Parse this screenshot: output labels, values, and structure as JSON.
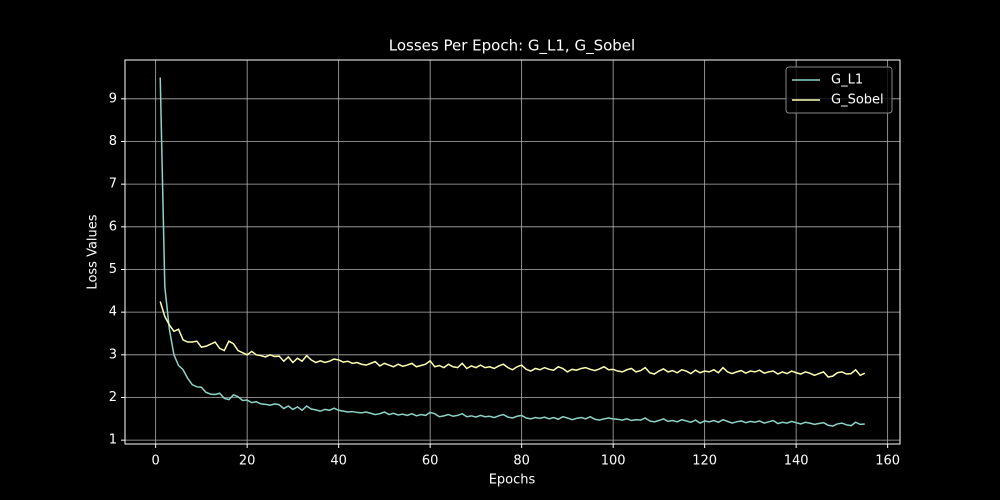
{
  "chart_data": {
    "type": "line",
    "title": "Losses Per Epoch: G_L1, G_Sobel",
    "x_label": "Epochs",
    "y_label": "Loss Values",
    "x": [
      1,
      2,
      3,
      4,
      5,
      6,
      7,
      8,
      9,
      10,
      11,
      12,
      13,
      14,
      15,
      16,
      17,
      18,
      19,
      20,
      21,
      22,
      23,
      24,
      25,
      26,
      27,
      28,
      29,
      30,
      31,
      32,
      33,
      34,
      35,
      36,
      37,
      38,
      39,
      40,
      41,
      42,
      43,
      44,
      45,
      46,
      47,
      48,
      49,
      50,
      51,
      52,
      53,
      54,
      55,
      56,
      57,
      58,
      59,
      60,
      61,
      62,
      63,
      64,
      65,
      66,
      67,
      68,
      69,
      70,
      71,
      72,
      73,
      74,
      75,
      76,
      77,
      78,
      79,
      80,
      81,
      82,
      83,
      84,
      85,
      86,
      87,
      88,
      89,
      90,
      91,
      92,
      93,
      94,
      95,
      96,
      97,
      98,
      99,
      100,
      101,
      102,
      103,
      104,
      105,
      106,
      107,
      108,
      109,
      110,
      111,
      112,
      113,
      114,
      115,
      116,
      117,
      118,
      119,
      120,
      121,
      122,
      123,
      124,
      125,
      126,
      127,
      128,
      129,
      130,
      131,
      132,
      133,
      134,
      135,
      136,
      137,
      138,
      139,
      140,
      141,
      142,
      143,
      144,
      145,
      146,
      147,
      148,
      149,
      150,
      151,
      152,
      153,
      154,
      155
    ],
    "series": [
      {
        "name": "G_L1",
        "color": "#8dd3c7",
        "values": [
          9.5,
          4.6,
          3.6,
          3.0,
          2.75,
          2.65,
          2.45,
          2.3,
          2.25,
          2.24,
          2.12,
          2.08,
          2.07,
          2.1,
          1.98,
          1.95,
          2.06,
          2.02,
          1.93,
          1.94,
          1.88,
          1.9,
          1.85,
          1.84,
          1.82,
          1.85,
          1.83,
          1.74,
          1.8,
          1.72,
          1.78,
          1.7,
          1.8,
          1.73,
          1.71,
          1.68,
          1.72,
          1.7,
          1.75,
          1.7,
          1.68,
          1.66,
          1.67,
          1.65,
          1.64,
          1.66,
          1.63,
          1.6,
          1.62,
          1.66,
          1.6,
          1.63,
          1.59,
          1.61,
          1.58,
          1.62,
          1.57,
          1.6,
          1.58,
          1.65,
          1.62,
          1.55,
          1.57,
          1.6,
          1.56,
          1.58,
          1.62,
          1.55,
          1.57,
          1.54,
          1.58,
          1.55,
          1.56,
          1.53,
          1.57,
          1.6,
          1.54,
          1.52,
          1.56,
          1.58,
          1.52,
          1.5,
          1.53,
          1.51,
          1.54,
          1.5,
          1.53,
          1.49,
          1.55,
          1.52,
          1.48,
          1.51,
          1.53,
          1.5,
          1.55,
          1.49,
          1.47,
          1.5,
          1.52,
          1.5,
          1.49,
          1.47,
          1.5,
          1.46,
          1.48,
          1.47,
          1.52,
          1.45,
          1.43,
          1.46,
          1.5,
          1.44,
          1.46,
          1.43,
          1.48,
          1.45,
          1.42,
          1.47,
          1.4,
          1.45,
          1.43,
          1.46,
          1.42,
          1.48,
          1.44,
          1.4,
          1.43,
          1.45,
          1.41,
          1.44,
          1.42,
          1.45,
          1.4,
          1.43,
          1.46,
          1.39,
          1.42,
          1.4,
          1.44,
          1.41,
          1.38,
          1.42,
          1.4,
          1.37,
          1.39,
          1.41,
          1.35,
          1.33,
          1.38,
          1.4,
          1.36,
          1.34,
          1.42,
          1.37,
          1.38
        ]
      },
      {
        "name": "G_Sobel",
        "color": "#feffb3",
        "values": [
          4.25,
          3.9,
          3.7,
          3.55,
          3.6,
          3.35,
          3.3,
          3.3,
          3.32,
          3.18,
          3.2,
          3.25,
          3.3,
          3.15,
          3.1,
          3.32,
          3.26,
          3.1,
          3.05,
          3.0,
          3.08,
          3.0,
          2.98,
          2.95,
          3.0,
          2.96,
          2.97,
          2.85,
          2.95,
          2.82,
          2.92,
          2.85,
          2.98,
          2.88,
          2.82,
          2.86,
          2.82,
          2.85,
          2.9,
          2.88,
          2.83,
          2.85,
          2.8,
          2.82,
          2.78,
          2.76,
          2.8,
          2.84,
          2.74,
          2.8,
          2.76,
          2.72,
          2.78,
          2.73,
          2.76,
          2.8,
          2.72,
          2.75,
          2.78,
          2.86,
          2.72,
          2.75,
          2.7,
          2.78,
          2.72,
          2.7,
          2.8,
          2.68,
          2.74,
          2.7,
          2.76,
          2.7,
          2.72,
          2.68,
          2.74,
          2.78,
          2.7,
          2.65,
          2.72,
          2.76,
          2.66,
          2.62,
          2.68,
          2.65,
          2.7,
          2.66,
          2.64,
          2.72,
          2.68,
          2.6,
          2.66,
          2.64,
          2.68,
          2.7,
          2.66,
          2.63,
          2.67,
          2.72,
          2.65,
          2.66,
          2.62,
          2.6,
          2.65,
          2.68,
          2.6,
          2.63,
          2.7,
          2.58,
          2.55,
          2.62,
          2.67,
          2.6,
          2.63,
          2.58,
          2.65,
          2.62,
          2.56,
          2.64,
          2.58,
          2.62,
          2.6,
          2.65,
          2.58,
          2.7,
          2.6,
          2.56,
          2.6,
          2.63,
          2.57,
          2.62,
          2.6,
          2.64,
          2.57,
          2.6,
          2.62,
          2.55,
          2.6,
          2.56,
          2.62,
          2.58,
          2.55,
          2.6,
          2.57,
          2.52,
          2.56,
          2.6,
          2.48,
          2.5,
          2.58,
          2.6,
          2.55,
          2.56,
          2.65,
          2.52,
          2.57
        ]
      }
    ],
    "xlim": [
      -6.7,
      162.7
    ],
    "ylim": [
      0.91,
      9.91
    ],
    "xticks": [
      0,
      20,
      40,
      60,
      80,
      100,
      120,
      140,
      160
    ],
    "yticks": [
      1,
      2,
      3,
      4,
      5,
      6,
      7,
      8,
      9
    ],
    "grid": true,
    "legend": "upper right"
  }
}
